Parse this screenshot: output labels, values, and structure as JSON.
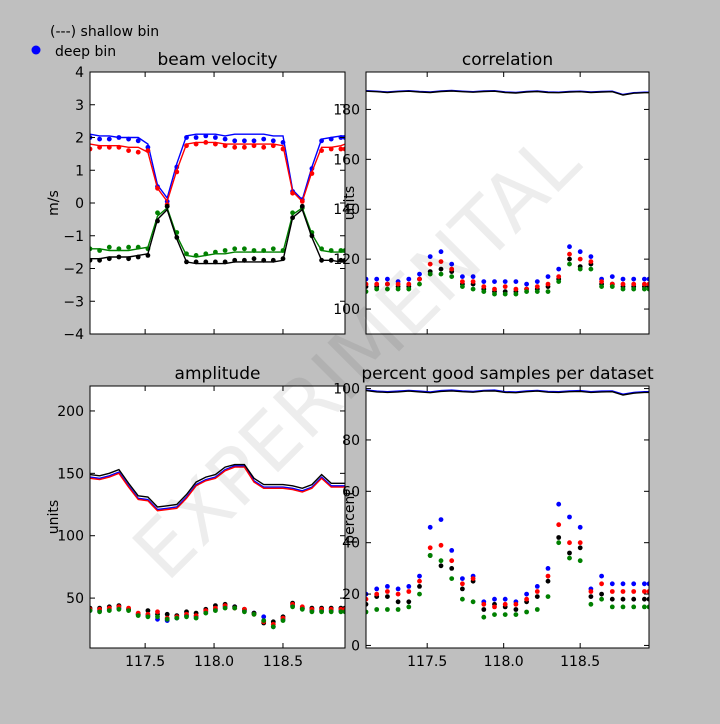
{
  "legend": {
    "line_label": "(---) shallow bin",
    "marker_label": "deep bin"
  },
  "watermark": "EXPERIMENTAL",
  "colors": {
    "figure_bg": "#bfbfbf",
    "axes_bg": "#ffffff",
    "beam1": "#0000ff",
    "beam2": "#ff0000",
    "beam3": "#008000",
    "beam4": "#000000"
  },
  "chart_data": [
    {
      "type": "line",
      "title": "beam velocity",
      "xlabel": "",
      "ylabel": "m/s",
      "xlim": [
        117.1,
        118.95
      ],
      "ylim": [
        -4,
        4
      ],
      "xticks": [
        117.5,
        118.0,
        118.5
      ],
      "xticklabels": [],
      "yticks": [
        -4,
        -3,
        -2,
        -1,
        0,
        1,
        2,
        3,
        4
      ],
      "yticklabels": [
        "−4",
        "−3",
        "−2",
        "−1",
        "0",
        "1",
        "2",
        "3",
        "4"
      ],
      "x": [
        117.1,
        117.17,
        117.24,
        117.31,
        117.38,
        117.45,
        117.52,
        117.59,
        117.66,
        117.73,
        117.8,
        117.87,
        117.94,
        118.01,
        118.08,
        118.15,
        118.22,
        118.29,
        118.36,
        118.43,
        118.5,
        118.57,
        118.64,
        118.71,
        118.78,
        118.85,
        118.92,
        118.95
      ],
      "series": [
        {
          "color": "beam1",
          "line": [
            2.1,
            2.05,
            2.05,
            2.0,
            2.0,
            2.0,
            1.8,
            0.55,
            0.15,
            1.2,
            2.05,
            2.1,
            2.1,
            2.1,
            2.05,
            2.1,
            2.1,
            2.1,
            2.1,
            2.05,
            2.05,
            0.4,
            0.1,
            1.1,
            1.95,
            2.0,
            2.05,
            2.05
          ],
          "points": [
            2.0,
            1.95,
            1.95,
            2.0,
            1.95,
            1.9,
            1.7,
            0.5,
            0.05,
            1.1,
            2.0,
            2.0,
            2.05,
            2.0,
            1.95,
            1.9,
            1.9,
            1.9,
            1.95,
            1.9,
            1.85,
            0.35,
            0.1,
            1.05,
            1.9,
            1.95,
            2.0,
            2.0
          ]
        },
        {
          "color": "beam2",
          "line": [
            1.8,
            1.75,
            1.75,
            1.75,
            1.7,
            1.7,
            1.55,
            0.45,
            0.05,
            1.0,
            1.8,
            1.85,
            1.85,
            1.85,
            1.8,
            1.8,
            1.8,
            1.8,
            1.8,
            1.8,
            1.75,
            0.35,
            0.05,
            0.95,
            1.7,
            1.7,
            1.75,
            1.8
          ],
          "points": [
            1.65,
            1.7,
            1.7,
            1.7,
            1.6,
            1.55,
            1.6,
            0.45,
            -0.05,
            0.95,
            1.75,
            1.8,
            1.85,
            1.8,
            1.75,
            1.7,
            1.7,
            1.75,
            1.7,
            1.75,
            1.65,
            0.3,
            0.05,
            0.9,
            1.6,
            1.65,
            1.65,
            1.65
          ]
        },
        {
          "color": "beam3",
          "line": [
            -1.4,
            -1.4,
            -1.45,
            -1.45,
            -1.45,
            -1.4,
            -1.35,
            -0.4,
            -0.15,
            -1.0,
            -1.6,
            -1.65,
            -1.6,
            -1.55,
            -1.55,
            -1.5,
            -1.5,
            -1.5,
            -1.5,
            -1.5,
            -1.5,
            -0.35,
            -0.15,
            -0.95,
            -1.45,
            -1.5,
            -1.5,
            -1.5
          ],
          "points": [
            -1.4,
            -1.45,
            -1.35,
            -1.4,
            -1.35,
            -1.35,
            -1.4,
            -0.3,
            -0.1,
            -0.9,
            -1.55,
            -1.6,
            -1.55,
            -1.5,
            -1.45,
            -1.4,
            -1.4,
            -1.45,
            -1.45,
            -1.4,
            -1.45,
            -0.3,
            -0.15,
            -0.9,
            -1.4,
            -1.45,
            -1.45,
            -1.45
          ]
        },
        {
          "color": "beam4",
          "line": [
            -1.7,
            -1.7,
            -1.65,
            -1.65,
            -1.65,
            -1.6,
            -1.55,
            -0.5,
            -0.2,
            -1.1,
            -1.8,
            -1.85,
            -1.85,
            -1.85,
            -1.85,
            -1.8,
            -1.8,
            -1.8,
            -1.8,
            -1.8,
            -1.75,
            -0.45,
            -0.2,
            -1.05,
            -1.75,
            -1.75,
            -1.8,
            -1.8
          ],
          "points": [
            -1.75,
            -1.75,
            -1.7,
            -1.65,
            -1.7,
            -1.65,
            -1.6,
            -0.55,
            -0.1,
            -1.05,
            -1.8,
            -1.8,
            -1.8,
            -1.8,
            -1.8,
            -1.75,
            -1.75,
            -1.7,
            -1.75,
            -1.75,
            -1.7,
            -0.45,
            -0.1,
            -1.0,
            -1.75,
            -1.75,
            -1.75,
            -1.75
          ]
        }
      ]
    },
    {
      "type": "line",
      "title": "correlation",
      "xlabel": "",
      "ylabel": "units",
      "xlim": [
        117.1,
        118.95
      ],
      "ylim": [
        90,
        195
      ],
      "xticks": [
        117.5,
        118.0,
        118.5
      ],
      "xticklabels": [],
      "yticks": [
        100,
        120,
        140,
        160,
        180
      ],
      "yticklabels": [
        "100",
        "120",
        "140",
        "160",
        "180"
      ],
      "x": [
        117.1,
        117.17,
        117.24,
        117.31,
        117.38,
        117.45,
        117.52,
        117.59,
        117.66,
        117.73,
        117.8,
        117.87,
        117.94,
        118.01,
        118.08,
        118.15,
        118.22,
        118.29,
        118.36,
        118.43,
        118.5,
        118.57,
        118.64,
        118.71,
        118.78,
        118.85,
        118.92,
        118.95
      ],
      "series": [
        {
          "color": "beam1",
          "line": [
            187.5,
            187.3,
            187.0,
            187.3,
            187.5,
            187.2,
            187.0,
            187.4,
            187.6,
            187.3,
            187.1,
            187.4,
            187.5,
            187.0,
            186.8,
            187.2,
            187.4,
            187.0,
            186.9,
            187.2,
            187.3,
            187.0,
            187.2,
            187.3,
            186.0,
            186.7,
            186.9,
            186.9
          ],
          "points": [
            112,
            112,
            112,
            111,
            112,
            114,
            121,
            123,
            118,
            113,
            113,
            111,
            111,
            111,
            111,
            110,
            111,
            113,
            116,
            125,
            123,
            121,
            112,
            113,
            112,
            112,
            112,
            112
          ]
        },
        {
          "color": "beam4",
          "line": [
            187.3,
            187.1,
            186.8,
            187.1,
            187.3,
            187.0,
            186.8,
            187.2,
            187.4,
            187.1,
            186.9,
            187.2,
            187.3,
            186.8,
            186.6,
            187.0,
            187.2,
            186.8,
            186.7,
            187.0,
            187.1,
            186.8,
            187.0,
            187.1,
            185.8,
            186.5,
            186.7,
            186.7
          ],
          "points": [
            109,
            109,
            110,
            109,
            109,
            112,
            115,
            116,
            115,
            110,
            110,
            108,
            107,
            107,
            107,
            108,
            108,
            109,
            112,
            120,
            117,
            118,
            110,
            110,
            109,
            109,
            109,
            109
          ]
        },
        {
          "color": "beam2",
          "line": [],
          "points": [
            110,
            110,
            110,
            110,
            110,
            112,
            118,
            119,
            116,
            111,
            111,
            109,
            108,
            109,
            108,
            108,
            109,
            110,
            113,
            122,
            120,
            119,
            111,
            110,
            110,
            110,
            110,
            110
          ]
        },
        {
          "color": "beam3",
          "line": [],
          "points": [
            107,
            108,
            108,
            108,
            108,
            110,
            114,
            114,
            113,
            109,
            108,
            107,
            106,
            106,
            106,
            107,
            107,
            107,
            111,
            118,
            116,
            116,
            109,
            109,
            108,
            108,
            108,
            108
          ]
        }
      ]
    },
    {
      "type": "line",
      "title": "amplitude",
      "xlabel": "",
      "ylabel": "units",
      "xlim": [
        117.1,
        118.95
      ],
      "ylim": [
        10,
        220
      ],
      "xticks": [
        117.5,
        118.0,
        118.5
      ],
      "xticklabels": [
        "117.5",
        "118.0",
        "118.5"
      ],
      "yticks": [
        50,
        100,
        150,
        200
      ],
      "yticklabels": [
        "50",
        "100",
        "150",
        "200"
      ],
      "x": [
        117.1,
        117.17,
        117.24,
        117.31,
        117.38,
        117.45,
        117.52,
        117.59,
        117.66,
        117.73,
        117.8,
        117.87,
        117.94,
        118.01,
        118.08,
        118.15,
        118.22,
        118.29,
        118.36,
        118.43,
        118.5,
        118.57,
        118.64,
        118.71,
        118.78,
        118.85,
        118.92,
        118.95
      ],
      "series": [
        {
          "color": "beam1",
          "line": [
            147,
            146,
            148,
            151,
            140,
            130,
            129,
            121,
            122,
            123,
            131,
            141,
            145,
            147,
            153,
            156,
            156,
            144,
            139,
            139,
            139,
            138,
            136,
            139,
            147,
            140,
            140,
            140
          ],
          "points": [
            40,
            40,
            41,
            42,
            41,
            37,
            36,
            33,
            32,
            34,
            36,
            35,
            39,
            41,
            43,
            43,
            40,
            38,
            35,
            27,
            33,
            44,
            42,
            40,
            40,
            40,
            40,
            40
          ]
        },
        {
          "color": "beam4",
          "line": [
            149,
            148,
            150,
            153,
            142,
            132,
            131,
            123,
            124,
            125,
            133,
            143,
            147,
            149,
            155,
            157,
            157,
            146,
            141,
            141,
            141,
            140,
            138,
            141,
            149,
            142,
            142,
            142
          ],
          "points": [
            42,
            42,
            43,
            44,
            41,
            37,
            40,
            37,
            37,
            36,
            39,
            38,
            41,
            44,
            45,
            43,
            41,
            38,
            30,
            31,
            35,
            46,
            42,
            42,
            42,
            42,
            42,
            42
          ]
        },
        {
          "color": "beam2",
          "line": [
            146,
            145,
            147,
            150,
            139,
            129,
            128,
            120,
            121,
            122,
            130,
            140,
            144,
            146,
            152,
            155,
            155,
            143,
            138,
            138,
            138,
            137,
            135,
            138,
            146,
            139,
            139,
            139
          ],
          "points": [
            41,
            41,
            42,
            43,
            42,
            38,
            37,
            39,
            34,
            35,
            37,
            36,
            40,
            42,
            44,
            42,
            41,
            37,
            31,
            29,
            34,
            45,
            43,
            41,
            41,
            41,
            41,
            41
          ]
        },
        {
          "color": "beam3",
          "line": [],
          "points": [
            40,
            39,
            40,
            41,
            40,
            36,
            35,
            35,
            33,
            34,
            35,
            34,
            38,
            40,
            42,
            42,
            39,
            37,
            32,
            27,
            32,
            43,
            41,
            39,
            39,
            39,
            39,
            39
          ]
        }
      ]
    },
    {
      "type": "line",
      "title": "percent good samples per dataset",
      "xlabel": "",
      "ylabel": "percent",
      "xlim": [
        117.1,
        118.95
      ],
      "ylim": [
        -1,
        101
      ],
      "xticks": [
        117.5,
        118.0,
        118.5
      ],
      "xticklabels": [
        "117.5",
        "118.0",
        "118.5"
      ],
      "yticks": [
        0,
        20,
        40,
        60,
        80,
        100
      ],
      "yticklabels": [
        "0",
        "20",
        "40",
        "60",
        "80",
        "100"
      ],
      "x": [
        117.1,
        117.17,
        117.24,
        117.31,
        117.38,
        117.45,
        117.52,
        117.59,
        117.66,
        117.73,
        117.8,
        117.87,
        117.94,
        118.01,
        118.08,
        118.15,
        118.22,
        118.29,
        118.36,
        118.43,
        118.5,
        118.57,
        118.64,
        118.71,
        118.78,
        118.85,
        118.92,
        118.95
      ],
      "series": [
        {
          "color": "beam1",
          "line": [
            99.5,
            99.0,
            98.8,
            99.0,
            99.3,
            99.0,
            98.7,
            99.2,
            99.4,
            99.1,
            98.9,
            99.3,
            99.4,
            98.8,
            98.7,
            99.1,
            99.3,
            98.9,
            98.8,
            99.1,
            99.2,
            98.8,
            99.0,
            99.1,
            97.8,
            98.5,
            98.8,
            98.8
          ],
          "points": [
            20,
            22,
            23,
            22,
            23,
            27,
            46,
            49,
            37,
            26,
            27,
            17,
            18,
            18,
            17,
            20,
            23,
            30,
            55,
            50,
            46,
            22,
            27,
            24,
            24,
            24,
            24,
            24
          ]
        },
        {
          "color": "beam4",
          "line": [
            99.2,
            98.7,
            98.5,
            98.7,
            99.0,
            98.7,
            98.4,
            98.9,
            99.1,
            98.8,
            98.6,
            99.0,
            99.1,
            98.5,
            98.4,
            98.8,
            99.0,
            98.6,
            98.5,
            98.8,
            98.9,
            98.5,
            98.7,
            98.8,
            97.5,
            98.2,
            98.5,
            98.5
          ],
          "points": [
            16,
            19,
            19,
            17,
            17,
            23,
            35,
            31,
            30,
            22,
            25,
            14,
            16,
            15,
            14,
            17,
            19,
            25,
            42,
            36,
            38,
            19,
            20,
            18,
            18,
            18,
            18,
            18
          ]
        },
        {
          "color": "beam2",
          "line": [],
          "points": [
            18,
            20,
            21,
            20,
            21,
            25,
            38,
            39,
            33,
            24,
            26,
            16,
            15,
            16,
            16,
            18,
            21,
            27,
            47,
            40,
            40,
            21,
            24,
            21,
            21,
            21,
            21,
            21
          ]
        },
        {
          "color": "beam3",
          "line": [],
          "points": [
            13,
            14,
            14,
            14,
            15,
            20,
            35,
            33,
            26,
            18,
            17,
            11,
            12,
            12,
            12,
            13,
            14,
            19,
            40,
            34,
            33,
            16,
            18,
            15,
            15,
            15,
            15,
            15
          ]
        }
      ]
    }
  ]
}
